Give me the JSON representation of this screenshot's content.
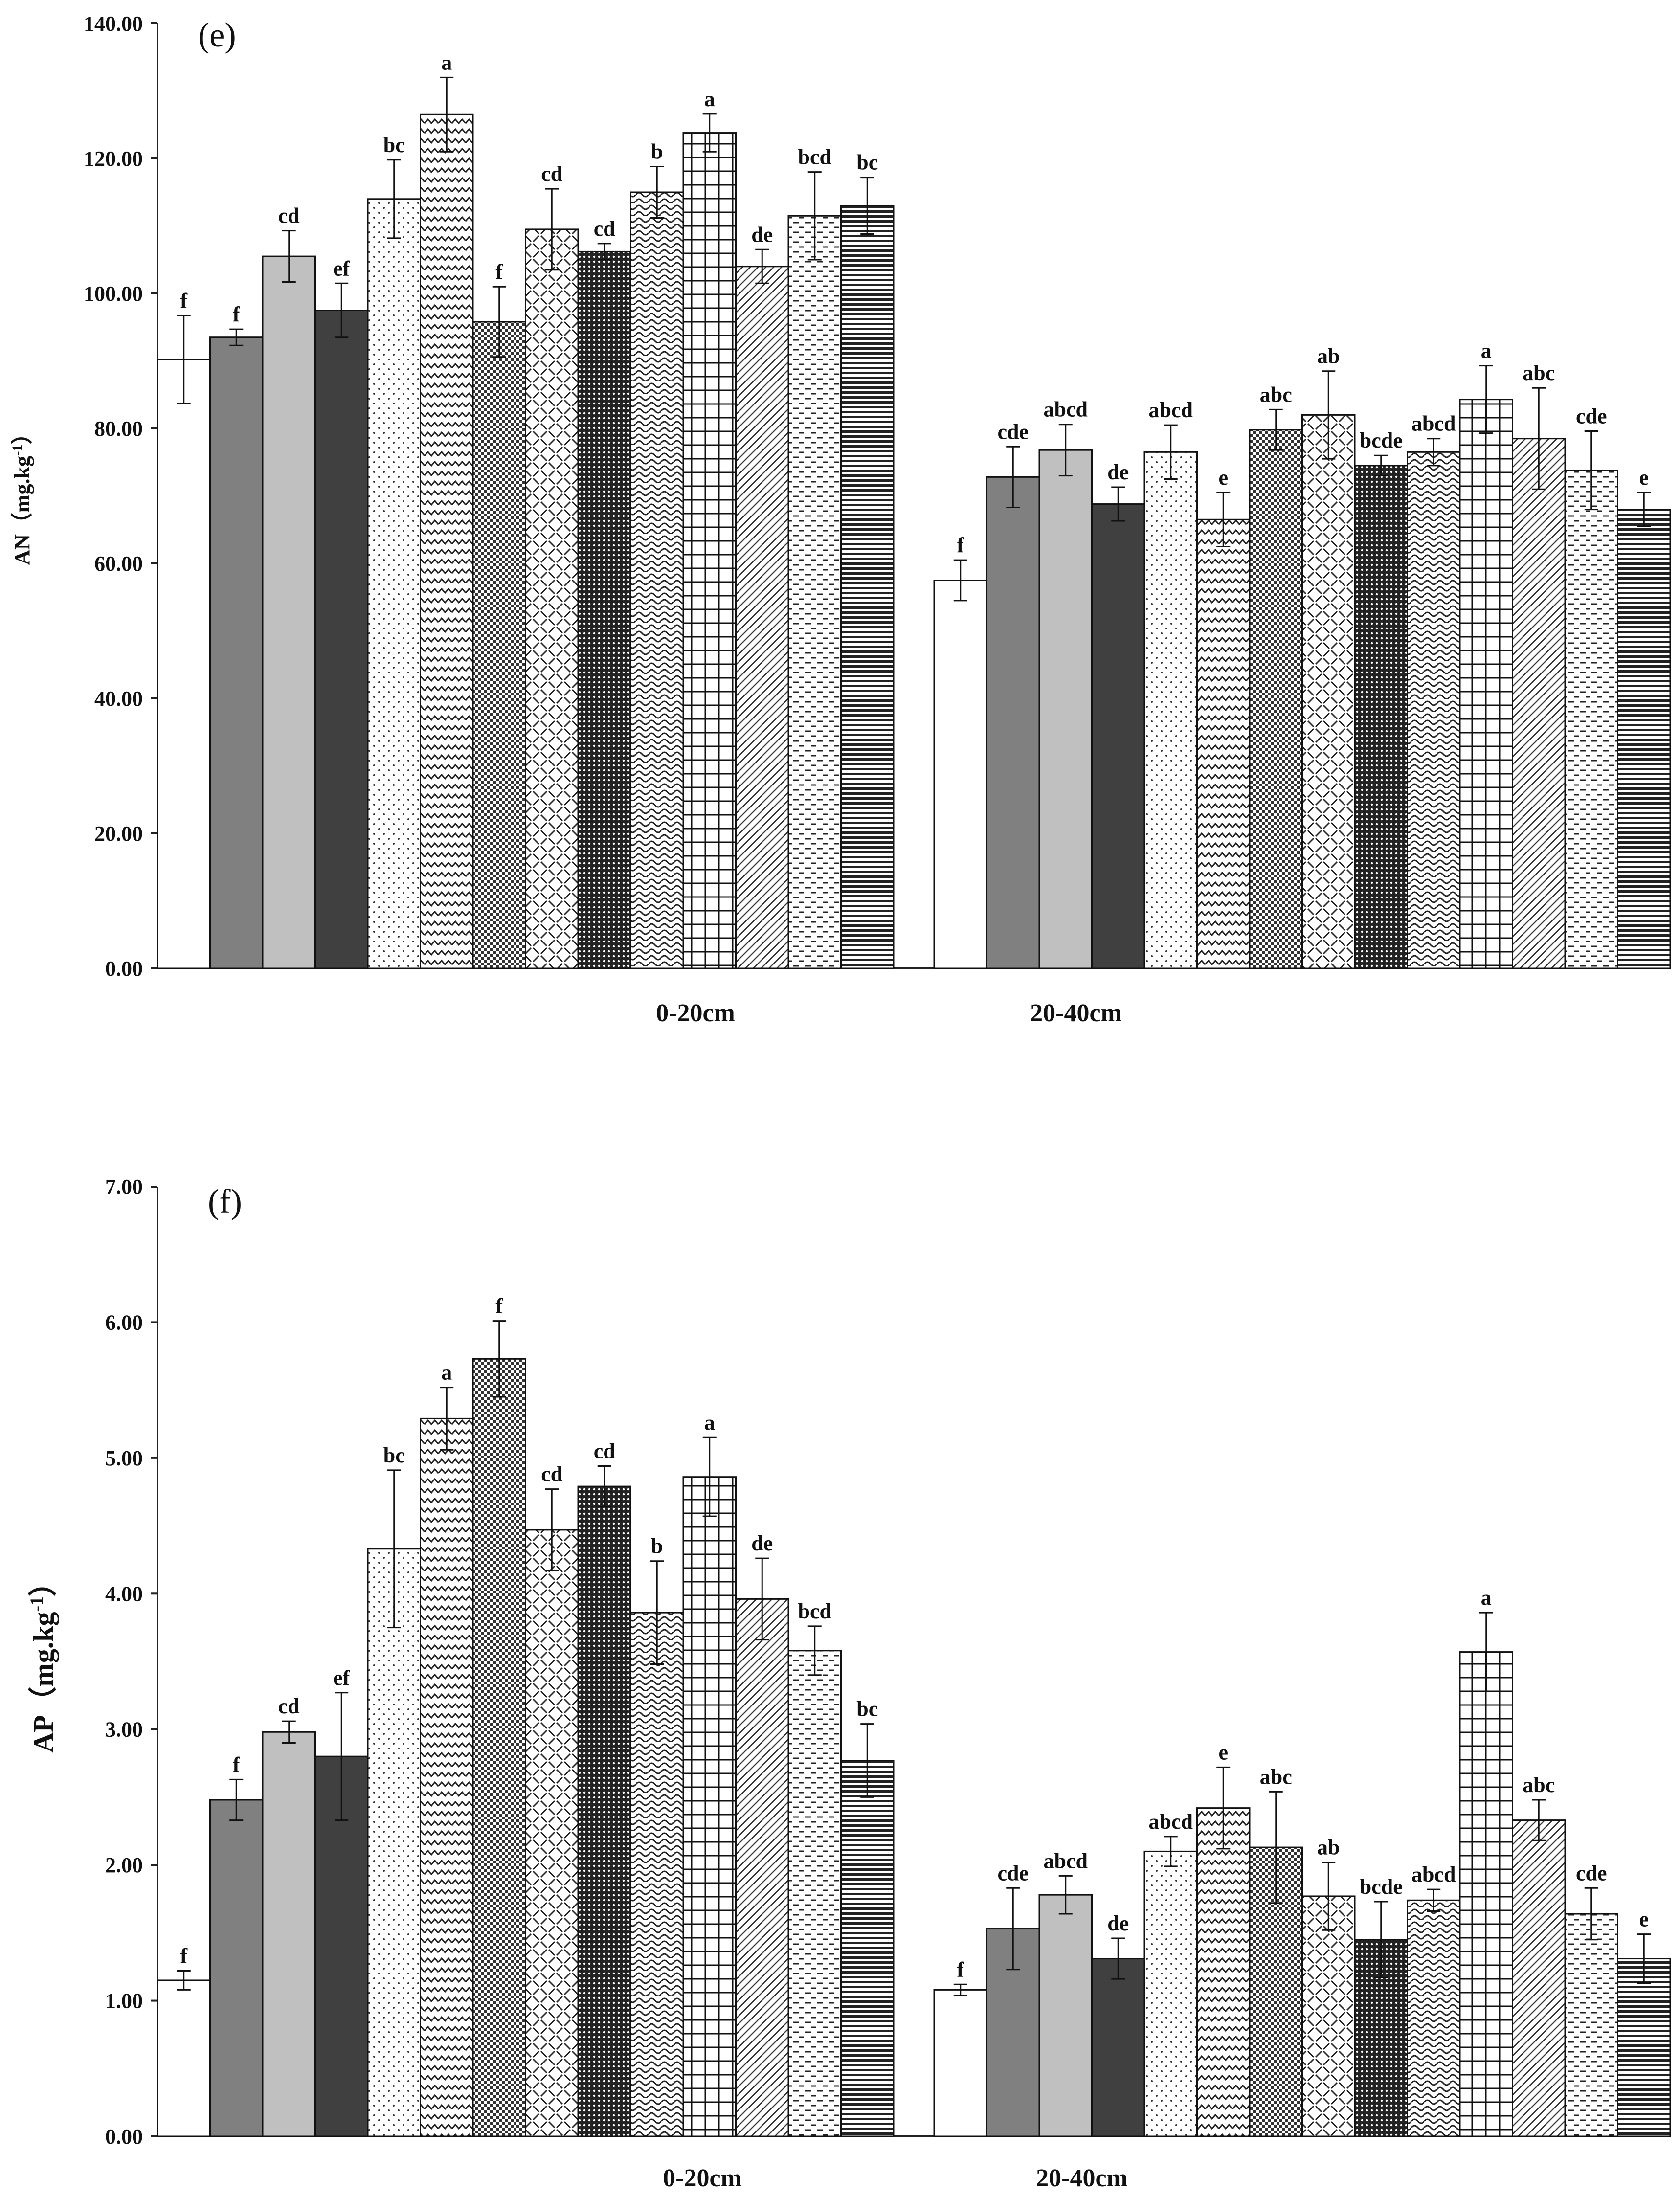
{
  "chart_data": [
    {
      "type": "bar",
      "title": "(e)",
      "ylabel": "AN（mg.kg-1）",
      "ylabel_base": "AN（mg.kg",
      "ylabel_sup": "-1",
      "ylabel_end": "）",
      "ylim": [
        0,
        140
      ],
      "yticks": [
        "0.00",
        "20.00",
        "40.00",
        "60.00",
        "80.00",
        "100.00",
        "120.00",
        "140.00"
      ],
      "categories": [
        "0-20cm",
        "20-40cm"
      ],
      "series_count": 14,
      "groups": [
        {
          "values": [
            90.2,
            93.5,
            105.5,
            97.5,
            114.0,
            126.5,
            95.8,
            109.5,
            106.2,
            115.0,
            123.8,
            104.0,
            111.5,
            113.0
          ],
          "errors": [
            6.5,
            1.2,
            3.8,
            4.0,
            5.8,
            5.5,
            5.2,
            6.0,
            1.2,
            3.8,
            2.8,
            2.5,
            6.5,
            4.2
          ],
          "letters": [
            "f",
            "f",
            "cd",
            "ef",
            "bc",
            "a",
            "f",
            "cd",
            "cd",
            "b",
            "a",
            "de",
            "bcd",
            "bc"
          ]
        },
        {
          "values": [
            57.5,
            72.8,
            76.8,
            68.8,
            76.5,
            66.5,
            79.8,
            82.0,
            74.5,
            76.5,
            84.3,
            78.5,
            73.8,
            68.0
          ],
          "errors": [
            3.0,
            4.5,
            3.8,
            2.5,
            4.0,
            4.0,
            3.0,
            6.5,
            1.5,
            2.0,
            5.0,
            7.5,
            5.8,
            2.5
          ],
          "letters": [
            "f",
            "cde",
            "abcd",
            "de",
            "abcd",
            "e",
            "abc",
            "ab",
            "bcde",
            "abcd",
            "a",
            "abc",
            "cde",
            "e"
          ]
        }
      ]
    },
    {
      "type": "bar",
      "title": "(f)",
      "ylabel": "AP（mg.kg-1）",
      "ylabel_base": "AP（mg.kg",
      "ylabel_sup": "-1",
      "ylabel_end": "）",
      "ylim": [
        0,
        7
      ],
      "yticks": [
        "0.00",
        "1.00",
        "2.00",
        "3.00",
        "4.00",
        "5.00",
        "6.00",
        "7.00"
      ],
      "categories": [
        "0-20cm",
        "20-40cm"
      ],
      "series_count": 14,
      "groups": [
        {
          "values": [
            1.15,
            2.48,
            2.98,
            2.8,
            4.33,
            5.29,
            5.73,
            4.47,
            4.79,
            3.86,
            4.86,
            3.96,
            3.58,
            2.77
          ],
          "errors": [
            0.07,
            0.15,
            0.08,
            0.47,
            0.58,
            0.23,
            0.28,
            0.3,
            0.15,
            0.38,
            0.29,
            0.3,
            0.18,
            0.27
          ],
          "letters": [
            "f",
            "f",
            "cd",
            "ef",
            "bc",
            "a",
            "f",
            "cd",
            "cd",
            "b",
            "a",
            "de",
            "bcd",
            "bc"
          ]
        },
        {
          "values": [
            1.08,
            1.53,
            1.78,
            1.31,
            2.1,
            2.42,
            2.13,
            1.77,
            1.45,
            1.74,
            3.57,
            2.33,
            1.64,
            1.31
          ],
          "errors": [
            0.04,
            0.3,
            0.14,
            0.15,
            0.11,
            0.3,
            0.41,
            0.25,
            0.28,
            0.08,
            0.29,
            0.15,
            0.19,
            0.18
          ],
          "letters": [
            "f",
            "cde",
            "abcd",
            "de",
            "abcd",
            "e",
            "abc",
            "ab",
            "bcde",
            "abcd",
            "a",
            "abc",
            "cde",
            "e"
          ]
        }
      ]
    }
  ]
}
